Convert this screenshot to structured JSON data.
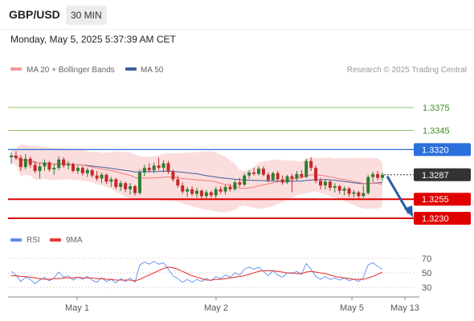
{
  "header": {
    "pair": "GBP/USD",
    "timeframe": "30 MIN",
    "datetime": "Monday, May 5, 2025 5:37:39 AM CET"
  },
  "legend": {
    "ma20": "MA 20 + Bollinger Bands",
    "ma50": "MA 50",
    "rsi": "RSI",
    "rsi_ma": "9MA",
    "credit": "Research © 2025 Trading Central"
  },
  "colors": {
    "candle_up": "#2f7d32",
    "candle_down": "#c62828",
    "bollinger_fill": "#f8c7c7",
    "ma20": "#ef7b7b",
    "ma50": "#3f5f9a",
    "resistance_line": "#8fc46a",
    "pivot_line": "#2a6fdb",
    "support_line": "#e00000",
    "arrow": "#2a5ca8",
    "rsi_line": "#5b8def",
    "rsi_ma_line": "#e53935"
  },
  "levels": [
    {
      "value": "1.3375",
      "kind": "resistance"
    },
    {
      "value": "1.3345",
      "kind": "resistance"
    },
    {
      "value": "1.3320",
      "kind": "pivot"
    },
    {
      "value": "1.3287",
      "kind": "last"
    },
    {
      "value": "1.3255",
      "kind": "support"
    },
    {
      "value": "1.3230",
      "kind": "support"
    }
  ],
  "chart_data": [
    {
      "type": "candlestick",
      "title": "GBP/USD",
      "timeframe": "30 MIN",
      "x_labels": [
        "May 1",
        "May 2",
        "May 5",
        "May 13"
      ],
      "y_range": [
        1.3225,
        1.3395
      ],
      "series": [
        {
          "name": "MA 20 + Bollinger Bands"
        },
        {
          "name": "MA 50"
        }
      ],
      "candles_ohlc": [
        [
          1.331,
          1.3316,
          1.3301,
          1.3312
        ],
        [
          1.3312,
          1.3318,
          1.3306,
          1.3309
        ],
        [
          1.3309,
          1.3313,
          1.3292,
          1.3297
        ],
        [
          1.3297,
          1.3314,
          1.3294,
          1.3308
        ],
        [
          1.3308,
          1.3311,
          1.3296,
          1.33
        ],
        [
          1.33,
          1.3305,
          1.3289,
          1.3292
        ],
        [
          1.3292,
          1.3302,
          1.3282,
          1.3298
        ],
        [
          1.3298,
          1.3307,
          1.3292,
          1.3303
        ],
        [
          1.3303,
          1.3305,
          1.3291,
          1.3294
        ],
        [
          1.3294,
          1.3301,
          1.3287,
          1.3296
        ],
        [
          1.3296,
          1.3311,
          1.3293,
          1.3307
        ],
        [
          1.3307,
          1.331,
          1.3296,
          1.3299
        ],
        [
          1.3299,
          1.3305,
          1.3294,
          1.3301
        ],
        [
          1.3301,
          1.3303,
          1.329,
          1.3292
        ],
        [
          1.3292,
          1.3299,
          1.3288,
          1.3296
        ],
        [
          1.3296,
          1.3298,
          1.3286,
          1.3289
        ],
        [
          1.3289,
          1.3296,
          1.3284,
          1.3293
        ],
        [
          1.3293,
          1.3295,
          1.3283,
          1.3286
        ],
        [
          1.3286,
          1.3292,
          1.3279,
          1.3282
        ],
        [
          1.3282,
          1.329,
          1.3276,
          1.3287
        ],
        [
          1.3287,
          1.3289,
          1.3275,
          1.3278
        ],
        [
          1.3278,
          1.3284,
          1.3271,
          1.3281
        ],
        [
          1.3281,
          1.3283,
          1.3268,
          1.3271
        ],
        [
          1.3271,
          1.3279,
          1.3266,
          1.3276
        ],
        [
          1.3276,
          1.3278,
          1.3264,
          1.3268
        ],
        [
          1.3268,
          1.3276,
          1.3261,
          1.3272
        ],
        [
          1.3272,
          1.3274,
          1.326,
          1.3263
        ],
        [
          1.3263,
          1.3294,
          1.3261,
          1.329
        ],
        [
          1.329,
          1.33,
          1.3285,
          1.3296
        ],
        [
          1.3296,
          1.3302,
          1.329,
          1.3293
        ],
        [
          1.3293,
          1.3303,
          1.3289,
          1.3299
        ],
        [
          1.3299,
          1.3309,
          1.3293,
          1.3296
        ],
        [
          1.3296,
          1.3306,
          1.329,
          1.3302
        ],
        [
          1.3302,
          1.3305,
          1.3288,
          1.3291
        ],
        [
          1.3291,
          1.3294,
          1.3278,
          1.3281
        ],
        [
          1.3281,
          1.3286,
          1.327,
          1.3273
        ],
        [
          1.3273,
          1.3277,
          1.3262,
          1.3265
        ],
        [
          1.3265,
          1.3271,
          1.3258,
          1.3268
        ],
        [
          1.3268,
          1.3272,
          1.3259,
          1.3262
        ],
        [
          1.3262,
          1.327,
          1.3257,
          1.3266
        ],
        [
          1.3266,
          1.3268,
          1.3256,
          1.3259
        ],
        [
          1.3259,
          1.3267,
          1.3256,
          1.3264
        ],
        [
          1.3264,
          1.3266,
          1.3257,
          1.326
        ],
        [
          1.326,
          1.3271,
          1.3256,
          1.3268
        ],
        [
          1.3268,
          1.3272,
          1.3262,
          1.3265
        ],
        [
          1.3265,
          1.3274,
          1.3261,
          1.3271
        ],
        [
          1.3271,
          1.3275,
          1.3265,
          1.3268
        ],
        [
          1.3268,
          1.328,
          1.3266,
          1.3277
        ],
        [
          1.3277,
          1.3283,
          1.3271,
          1.3274
        ],
        [
          1.3274,
          1.3289,
          1.3272,
          1.3286
        ],
        [
          1.3286,
          1.3293,
          1.3282,
          1.329
        ],
        [
          1.329,
          1.3296,
          1.3286,
          1.3288
        ],
        [
          1.3288,
          1.3298,
          1.3286,
          1.3295
        ],
        [
          1.3295,
          1.3298,
          1.3285,
          1.3287
        ],
        [
          1.3287,
          1.329,
          1.3277,
          1.328
        ],
        [
          1.328,
          1.3291,
          1.3278,
          1.3289
        ],
        [
          1.3289,
          1.3292,
          1.3278,
          1.3281
        ],
        [
          1.3281,
          1.3286,
          1.3274,
          1.3277
        ],
        [
          1.3277,
          1.3287,
          1.3275,
          1.3285
        ],
        [
          1.3285,
          1.3288,
          1.3264,
          1.3282
        ],
        [
          1.3282,
          1.3292,
          1.3279,
          1.3288
        ],
        [
          1.3288,
          1.3293,
          1.3282,
          1.3284
        ],
        [
          1.3284,
          1.3308,
          1.3283,
          1.3305
        ],
        [
          1.3305,
          1.331,
          1.3292,
          1.3296
        ],
        [
          1.3296,
          1.3299,
          1.3276,
          1.3279
        ],
        [
          1.3279,
          1.3283,
          1.3268,
          1.3273
        ],
        [
          1.3273,
          1.3281,
          1.3268,
          1.3278
        ],
        [
          1.3278,
          1.328,
          1.3266,
          1.327
        ],
        [
          1.327,
          1.3276,
          1.3264,
          1.3272
        ],
        [
          1.3272,
          1.3274,
          1.3262,
          1.3266
        ],
        [
          1.3266,
          1.3272,
          1.326,
          1.3269
        ],
        [
          1.3269,
          1.3271,
          1.3258,
          1.3262
        ],
        [
          1.3262,
          1.3267,
          1.3257,
          1.3264
        ],
        [
          1.3264,
          1.3266,
          1.3256,
          1.3259
        ],
        [
          1.3259,
          1.3273,
          1.3257,
          1.3263
        ],
        [
          1.3263,
          1.3287,
          1.3261,
          1.3284
        ],
        [
          1.3284,
          1.3291,
          1.3278,
          1.3288
        ],
        [
          1.3288,
          1.3292,
          1.328,
          1.3283
        ],
        [
          1.3283,
          1.329,
          1.3279,
          1.3287
        ]
      ],
      "levels": [
        1.3375,
        1.3345,
        1.332,
        1.3287,
        1.3255,
        1.323
      ],
      "last_price": 1.3287
    },
    {
      "type": "line",
      "title": "RSI",
      "y_ticks": [
        30,
        50,
        70
      ],
      "y_range": [
        20,
        80
      ],
      "series": [
        {
          "name": "RSI",
          "values": [
            52,
            47,
            38,
            44,
            41,
            35,
            40,
            44,
            39,
            43,
            51,
            44,
            46,
            40,
            44,
            41,
            45,
            40,
            37,
            43,
            38,
            41,
            36,
            42,
            38,
            43,
            37,
            61,
            65,
            62,
            66,
            62,
            64,
            55,
            46,
            42,
            37,
            41,
            37,
            41,
            38,
            42,
            39,
            45,
            42,
            47,
            44,
            50,
            47,
            55,
            58,
            55,
            58,
            52,
            46,
            53,
            47,
            44,
            50,
            49,
            52,
            48,
            63,
            55,
            45,
            41,
            45,
            41,
            43,
            40,
            43,
            39,
            41,
            38,
            44,
            61,
            64,
            59,
            55
          ]
        },
        {
          "name": "9MA",
          "values": [
            46,
            46,
            45,
            45,
            44,
            43,
            42,
            41,
            41,
            42,
            42,
            43,
            43,
            43,
            44,
            43,
            43,
            43,
            42,
            42,
            41,
            41,
            40,
            40,
            40,
            40,
            39,
            41,
            44,
            47,
            50,
            53,
            56,
            58,
            57,
            55,
            52,
            49,
            46,
            44,
            42,
            40,
            40,
            41,
            41,
            42,
            43,
            44,
            45,
            46,
            48,
            50,
            52,
            53,
            53,
            53,
            52,
            51,
            50,
            50,
            49,
            49,
            51,
            52,
            51,
            50,
            49,
            47,
            45,
            44,
            43,
            42,
            41,
            41,
            41,
            43,
            45,
            48,
            51
          ]
        }
      ]
    }
  ]
}
